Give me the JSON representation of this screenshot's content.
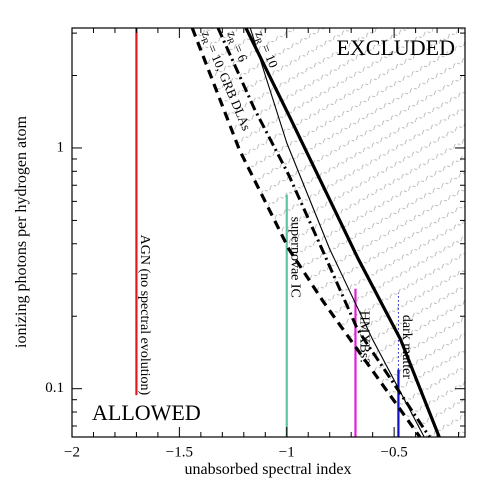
{
  "chart_data": {
    "type": "line",
    "x_label": "unabsorbed spectral index",
    "y_label": "ionizing photons per hydrogen atom",
    "xlim": [
      -2,
      -0.17
    ],
    "ylim": [
      0.063,
      3.15
    ],
    "ylog": true,
    "xticks": [
      {
        "value": -2,
        "label": "−2"
      },
      {
        "value": -1.5,
        "label": "−1.5"
      },
      {
        "value": -1,
        "label": "−1"
      },
      {
        "value": -0.5,
        "label": "−0.5"
      }
    ],
    "xminorticks": [
      -1.9,
      -1.8,
      -1.7,
      -1.6,
      -1.4,
      -1.3,
      -1.2,
      -1.1,
      -0.9,
      -0.8,
      -0.7,
      -0.6,
      -0.4,
      -0.3,
      -0.2
    ],
    "yticks": [
      0.1,
      1
    ],
    "yminorticks": [
      0.07,
      0.08,
      0.09,
      0.2,
      0.3,
      0.4,
      0.5,
      0.6,
      0.7,
      0.8,
      0.9,
      2,
      3
    ],
    "regions": {
      "excluded": "EXCLUDED",
      "allowed": "ALLOWED"
    },
    "series": [
      {
        "label_main": "z",
        "label_sub": "R",
        "label_rest": " = 10, GRB DLAs",
        "color": "#000000",
        "style": "dashed",
        "width": 3.2,
        "hatch_right": true,
        "x": [
          -1.44,
          -1.22,
          -0.99,
          -0.83,
          -0.67,
          -0.38
        ],
        "values": [
          3.15,
          0.98,
          0.38,
          0.23,
          0.145,
          0.063
        ]
      },
      {
        "label_main": "z",
        "label_sub": "R",
        "label_rest": " = 6",
        "color": "#000000",
        "style": "dashdot",
        "width": 3,
        "hatch_right": false,
        "x": [
          -1.32,
          -1.15,
          -0.99,
          -0.83,
          -0.67,
          -0.335
        ],
        "values": [
          3.15,
          1.45,
          0.77,
          0.37,
          0.176,
          0.063
        ]
      },
      {
        "label_main": "z",
        "label_sub": "R",
        "label_rest": " = 10",
        "color": "#000000",
        "style": "solid",
        "width": 3.2,
        "hatch_right": false,
        "x": [
          -1.19,
          -0.98,
          -0.8,
          -0.67,
          -0.47,
          -0.29
        ],
        "values": [
          3.15,
          1.31,
          0.61,
          0.35,
          0.16,
          0.063
        ]
      },
      {
        "color": "#000000",
        "style": "solid",
        "width": 1.1,
        "hatch_right": false,
        "x": [
          -1.17,
          -1.0,
          -0.8,
          -0.6,
          -0.36
        ],
        "values": [
          3.15,
          1.05,
          0.38,
          0.16,
          0.063
        ]
      }
    ],
    "verticals": [
      {
        "name": "AGN (no spectral evolution)",
        "color": "#e8141c",
        "x": -1.7,
        "y": [
          0.094,
          3.15
        ]
      },
      {
        "name": "supernovae IC",
        "color": "#5fc4a0",
        "x": -1.0,
        "y": [
          0.063,
          0.64
        ]
      },
      {
        "name": "HMXBs?",
        "color": "#e020d8",
        "x": -0.68,
        "y": [
          0.063,
          0.26
        ]
      },
      {
        "name": "dark matter",
        "color": "#1010c0",
        "x": -0.48,
        "y": [
          0.063,
          0.12
        ],
        "dotted_y": [
          0.12,
          0.25
        ]
      }
    ]
  }
}
